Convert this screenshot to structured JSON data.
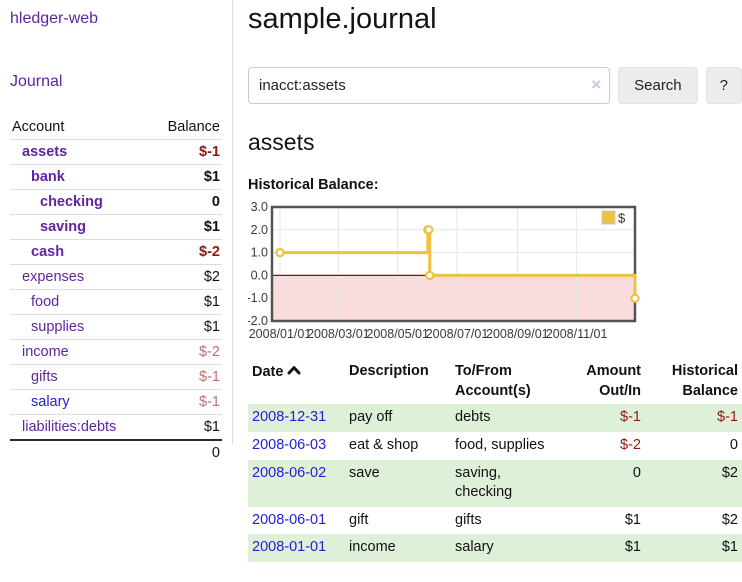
{
  "app": {
    "brand": "hledger-web"
  },
  "sidebar": {
    "journal_link": "Journal",
    "headers": {
      "account": "Account",
      "balance": "Balance"
    },
    "accounts": [
      {
        "name": "assets",
        "level": 1,
        "bold": true,
        "link_color": "purple",
        "balance": "$-1",
        "balance_style": "neg-strong"
      },
      {
        "name": "bank",
        "level": 2,
        "bold": true,
        "link_color": "purple",
        "balance": "$1",
        "balance_style": ""
      },
      {
        "name": "checking",
        "level": 3,
        "bold": true,
        "link_color": "purple",
        "balance": "0",
        "balance_style": ""
      },
      {
        "name": "saving",
        "level": 3,
        "bold": true,
        "link_color": "purple",
        "balance": "$1",
        "balance_style": ""
      },
      {
        "name": "cash",
        "level": 2,
        "bold": true,
        "link_color": "purple",
        "balance": "$-2",
        "balance_style": "neg-strong"
      },
      {
        "name": "expenses",
        "level": 1,
        "bold": false,
        "link_color": "purple",
        "balance": "$2",
        "balance_style": ""
      },
      {
        "name": "food",
        "level": 2,
        "bold": false,
        "link_color": "purple",
        "balance": "$1",
        "balance_style": ""
      },
      {
        "name": "supplies",
        "level": 2,
        "bold": false,
        "link_color": "purple",
        "balance": "$1",
        "balance_style": ""
      },
      {
        "name": "income",
        "level": 1,
        "bold": false,
        "link_color": "purple",
        "balance": "$-2",
        "balance_style": "neg-muted"
      },
      {
        "name": "gifts",
        "level": 2,
        "bold": false,
        "link_color": "purple",
        "balance": "$-1",
        "balance_style": "neg-muted"
      },
      {
        "name": "salary",
        "level": 2,
        "bold": false,
        "link_color": "blue",
        "balance": "$-1",
        "balance_style": "neg-muted"
      },
      {
        "name": "liabilities:debts",
        "level": 1,
        "bold": false,
        "link_color": "purple",
        "balance": "$1",
        "balance_style": ""
      }
    ],
    "total": "0"
  },
  "main": {
    "title": "sample.journal",
    "search": {
      "value": "inacct:assets",
      "clear_icon": "×",
      "search_button": "Search",
      "help_button": "?"
    },
    "account_heading": "assets",
    "chart_label": "Historical Balance:"
  },
  "chart_data": {
    "type": "line",
    "title": "Historical Balance",
    "step": true,
    "series": [
      {
        "name": "$",
        "color": "#edc240",
        "points": [
          {
            "date": "2008-01-01",
            "day": 0,
            "value": 1
          },
          {
            "date": "2008-06-01",
            "day": 152,
            "value": 2
          },
          {
            "date": "2008-06-02",
            "day": 153,
            "value": 2
          },
          {
            "date": "2008-06-03",
            "day": 154,
            "value": 0
          },
          {
            "date": "2008-12-31",
            "day": 365,
            "value": -1
          }
        ]
      }
    ],
    "x_ticks": [
      {
        "day": 0,
        "label": "2008/01/01"
      },
      {
        "day": 60,
        "label": "2008/03/01"
      },
      {
        "day": 121,
        "label": "2008/05/01"
      },
      {
        "day": 182,
        "label": "2008/07/01"
      },
      {
        "day": 244,
        "label": "2008/09/01"
      },
      {
        "day": 305,
        "label": "2008/11/01"
      }
    ],
    "y_ticks": [
      "3.0",
      "2.0",
      "1.0",
      "0.0",
      "-1.0",
      "-2.0"
    ],
    "ylim": [
      -2,
      3
    ],
    "xlim_days": [
      0,
      365
    ],
    "grid": true,
    "negative_region_color": "#fadcdc",
    "zero_line_color": "#a40000",
    "grid_color": "#e6e6e6",
    "border_color": "#545454",
    "legend": {
      "label": "$",
      "swatch_color": "#edc240",
      "position": "top-right"
    }
  },
  "register": {
    "headers": {
      "date": "Date",
      "sort_icon": "chevron-up",
      "description": "Description",
      "accounts_line1": "To/From",
      "accounts_line2": "Account(s)",
      "amount_line1": "Amount",
      "amount_line2": "Out/In",
      "balance_line1": "Historical",
      "balance_line2": "Balance"
    },
    "rows": [
      {
        "date": "2008-12-31",
        "description": "pay off",
        "accounts": "debts",
        "amount": "$-1",
        "amount_neg": true,
        "balance": "$-1",
        "balance_neg": true
      },
      {
        "date": "2008-06-03",
        "description": "eat & shop",
        "accounts": "food, supplies",
        "amount": "$-2",
        "amount_neg": true,
        "balance": "0",
        "balance_neg": false
      },
      {
        "date": "2008-06-02",
        "description": "save",
        "accounts": "saving, checking",
        "amount": "0",
        "amount_neg": false,
        "balance": "$2",
        "balance_neg": false
      },
      {
        "date": "2008-06-01",
        "description": "gift",
        "accounts": "gifts",
        "amount": "$1",
        "amount_neg": false,
        "balance": "$2",
        "balance_neg": false
      },
      {
        "date": "2008-01-01",
        "description": "income",
        "accounts": "salary",
        "amount": "$1",
        "amount_neg": false,
        "balance": "$1",
        "balance_neg": false
      }
    ]
  }
}
